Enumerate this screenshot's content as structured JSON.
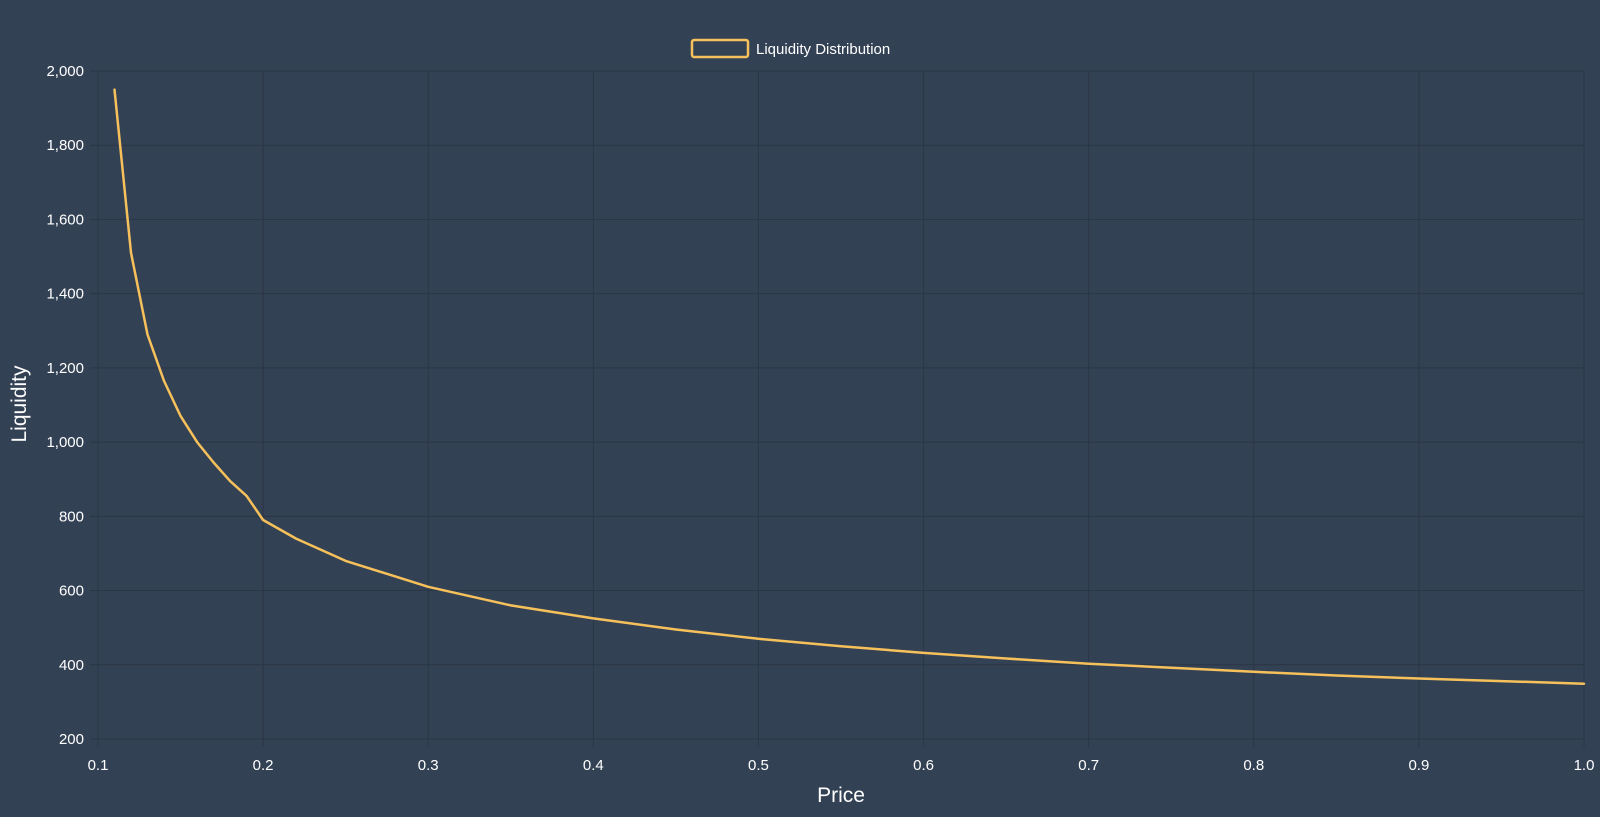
{
  "chart_data": {
    "type": "line",
    "title": "",
    "xlabel": "Price",
    "ylabel": "Liquidity",
    "xlim": [
      0.1,
      1.0
    ],
    "ylim": [
      200,
      2000
    ],
    "x_ticks": [
      "0.1",
      "0.2",
      "0.3",
      "0.4",
      "0.5",
      "0.6",
      "0.7",
      "0.8",
      "0.9",
      "1.0"
    ],
    "y_ticks": [
      "200",
      "400",
      "600",
      "800",
      "1,000",
      "1,200",
      "1,400",
      "1,600",
      "1,800",
      "2,000"
    ],
    "grid": true,
    "legend_position": "top-center",
    "series": [
      {
        "name": "Liquidity Distribution",
        "color": "#f6c15b",
        "x": [
          0.11,
          0.12,
          0.13,
          0.14,
          0.15,
          0.16,
          0.17,
          0.18,
          0.19,
          0.2,
          0.22,
          0.25,
          0.3,
          0.35,
          0.4,
          0.45,
          0.5,
          0.55,
          0.6,
          0.65,
          0.7,
          0.75,
          0.8,
          0.85,
          0.9,
          0.95,
          1.0
        ],
        "values": [
          1950,
          1510,
          1290,
          1165,
          1070,
          1000,
          945,
          895,
          855,
          790,
          740,
          680,
          610,
          560,
          525,
          495,
          470,
          450,
          432,
          417,
          403,
          392,
          381,
          371,
          363,
          356,
          349
        ]
      }
    ]
  },
  "colors": {
    "background": "#334155",
    "grid": "#2b3645",
    "text": "#ffffff",
    "line": "#f6c15b"
  }
}
